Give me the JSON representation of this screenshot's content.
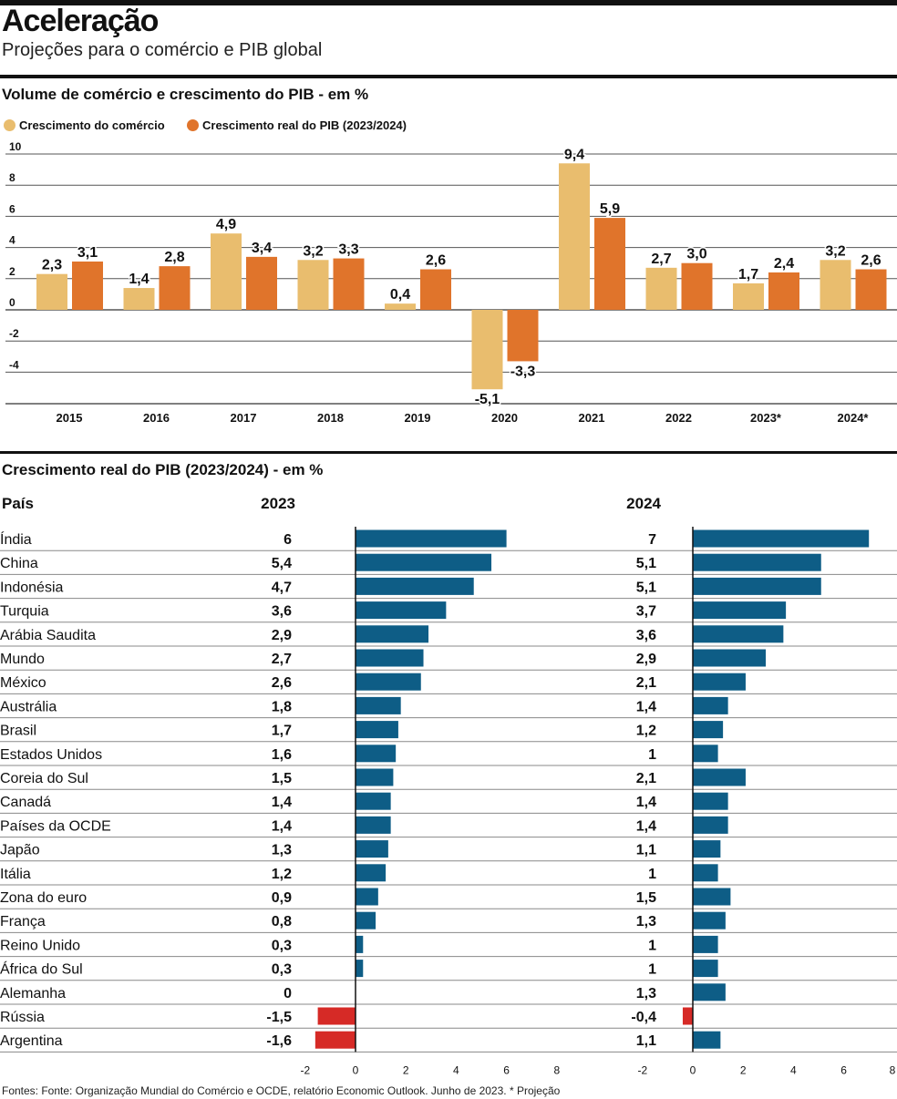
{
  "header": {
    "title": "Aceleração",
    "subtitle": "Projeções para o comércio e PIB global"
  },
  "colors": {
    "trade": "#e9bd6e",
    "gdp": "#e0742b",
    "positive": "#0e5d86",
    "negative": "#d62a26",
    "rule": "#111111",
    "grid": "#555555"
  },
  "chart_data": [
    {
      "type": "bar",
      "title": "Volume de comércio e crescimento do PIB - em %",
      "categories": [
        "2015",
        "2016",
        "2017",
        "2018",
        "2019",
        "2020",
        "2021",
        "2022",
        "2023*",
        "2024*"
      ],
      "series": [
        {
          "name": "Crescimento do comércio",
          "values": [
            2.3,
            1.4,
            4.9,
            3.2,
            0.4,
            -5.1,
            9.4,
            2.7,
            1.7,
            3.2
          ]
        },
        {
          "name": "Crescimento real do PIB (2023/2024)",
          "values": [
            3.1,
            2.8,
            3.4,
            3.3,
            2.6,
            -3.3,
            5.9,
            3.0,
            2.4,
            2.6
          ]
        }
      ],
      "value_labels": [
        [
          "2,3",
          "1,4",
          "4,9",
          "3,2",
          "0,4",
          "-5,1",
          "9,4",
          "2,7",
          "1,7",
          "3,2"
        ],
        [
          "3,1",
          "2,8",
          "3,4",
          "3,3",
          "2,6",
          "-3,3",
          "5,9",
          "3,0",
          "2,4",
          "2,6"
        ]
      ],
      "yticks": [
        10,
        8,
        6,
        4,
        2,
        0,
        -2,
        -4
      ],
      "ytick_labels": [
        "10",
        "8",
        "6",
        "4",
        "2",
        "0",
        "-2",
        "-4"
      ],
      "ylim": [
        -6,
        11
      ],
      "legend": "top-left"
    },
    {
      "type": "bar",
      "orientation": "horizontal",
      "title": "Crescimento real do PIB (2023/2024) - em %",
      "country_header": "País",
      "series_labels": [
        "2023",
        "2024"
      ],
      "countries": [
        "Índia",
        "China",
        "Indonésia",
        "Turquia",
        "Arábia Saudita",
        "Mundo",
        "México",
        "Austrália",
        "Brasil",
        "Estados Unidos",
        "Coreia do Sul",
        "Canadá",
        "Países da OCDE",
        "Japão",
        "Itália",
        "Zona do euro",
        "França",
        "Reino Unido",
        "África do Sul",
        "Alemanha",
        "Rússia",
        "Argentina"
      ],
      "values_2023": [
        6,
        5.4,
        4.7,
        3.6,
        2.9,
        2.7,
        2.6,
        1.8,
        1.7,
        1.6,
        1.5,
        1.4,
        1.4,
        1.3,
        1.2,
        0.9,
        0.8,
        0.3,
        0.3,
        0,
        -1.5,
        -1.6
      ],
      "labels_2023": [
        "6",
        "5,4",
        "4,7",
        "3,6",
        "2,9",
        "2,7",
        "2,6",
        "1,8",
        "1,7",
        "1,6",
        "1,5",
        "1,4",
        "1,4",
        "1,3",
        "1,2",
        "0,9",
        "0,8",
        "0,3",
        "0,3",
        "0",
        "-1,5",
        "-1,6"
      ],
      "values_2024": [
        7,
        5.1,
        5.1,
        3.7,
        3.6,
        2.9,
        2.1,
        1.4,
        1.2,
        1,
        2.1,
        1.4,
        1.4,
        1.1,
        1,
        1.5,
        1.3,
        1,
        1,
        1.3,
        -0.4,
        1.1
      ],
      "labels_2024": [
        "7",
        "5,1",
        "5,1",
        "3,7",
        "3,6",
        "2,9",
        "2,1",
        "1,4",
        "1,2",
        "1",
        "2,1",
        "1,4",
        "1,4",
        "1,1",
        "1",
        "1,5",
        "1,3",
        "1",
        "1",
        "1,3",
        "-0,4",
        "1,1"
      ],
      "xticks_2023": [
        -2,
        0,
        2,
        4,
        6,
        8
      ],
      "xtick_labels_2023": [
        "-2",
        "0",
        "2",
        "4",
        "6",
        "8"
      ],
      "xticks_2024": [
        -2,
        0,
        2,
        4,
        6,
        8
      ],
      "xtick_labels_2024": [
        "-2",
        "0",
        "2",
        "4",
        "6",
        "8"
      ],
      "xlim_2023": [
        -2,
        8
      ],
      "xlim_2024": [
        -2,
        8
      ]
    }
  ],
  "footer": "Fontes: Fonte: Organização Mundial do Comércio e OCDE, relatório Economic Outlook. Junho de 2023. * Projeção"
}
